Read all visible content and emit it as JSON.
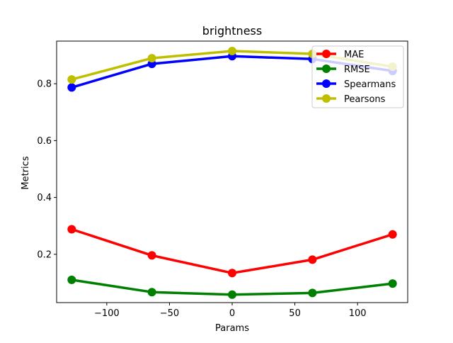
{
  "chart_data": {
    "type": "line",
    "title": "brightness",
    "xlabel": "Params",
    "ylabel": "Metrics",
    "xlim": [
      -140,
      140
    ],
    "ylim": [
      0.03,
      0.95
    ],
    "xticks": [
      -100,
      -50,
      0,
      50,
      100
    ],
    "xtick_labels": [
      "−100",
      "−50",
      "0",
      "50",
      "100"
    ],
    "yticks": [
      0.2,
      0.4,
      0.6,
      0.8
    ],
    "ytick_labels": [
      "0.2",
      "0.4",
      "0.6",
      "0.8"
    ],
    "grid": false,
    "legend_position": "top-right",
    "x": [
      -128,
      -64,
      0,
      64,
      128
    ],
    "series": [
      {
        "name": "MAE",
        "color": "#ff0000",
        "values": [
          0.288,
          0.196,
          0.134,
          0.181,
          0.27
        ]
      },
      {
        "name": "RMSE",
        "color": "#008000",
        "values": [
          0.11,
          0.067,
          0.058,
          0.064,
          0.097
        ]
      },
      {
        "name": "Spearmans",
        "color": "#0000ff",
        "values": [
          0.787,
          0.87,
          0.897,
          0.887,
          0.845
        ]
      },
      {
        "name": "Pearsons",
        "color": "#bfbf00",
        "values": [
          0.815,
          0.89,
          0.915,
          0.905,
          0.86
        ]
      }
    ]
  }
}
